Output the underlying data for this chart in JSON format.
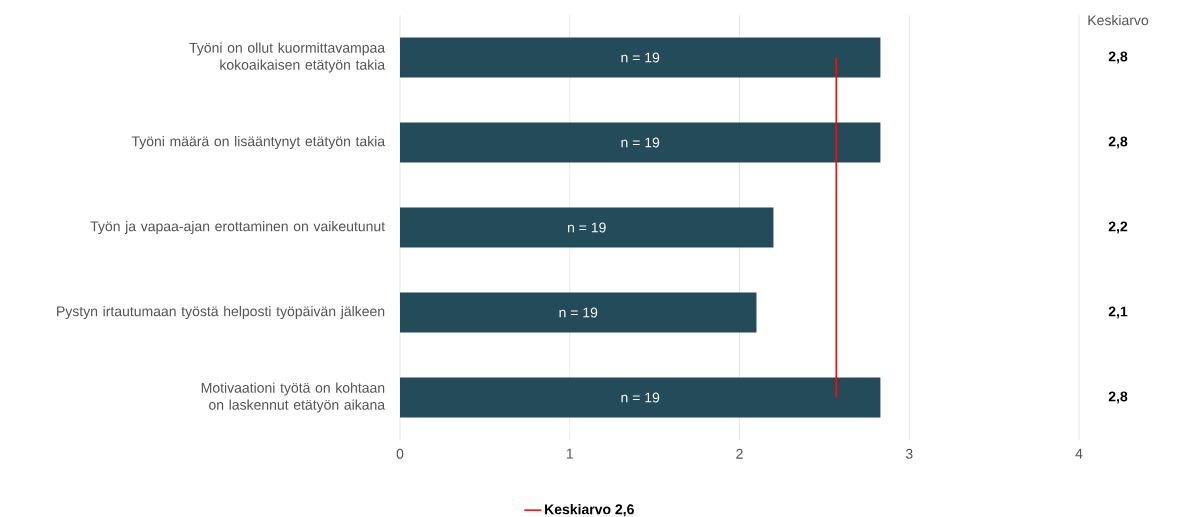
{
  "chart_data": {
    "type": "bar",
    "orientation": "horizontal",
    "categories": [
      "Työni on ollut kuormittavampaa kokoaikaisen etätyön takia",
      "Työni määrä on lisääntynyt etätyön takia",
      "Työn ja vapaa-ajan erottaminen on vaikeutunut",
      "Pystyn irtautumaan työstä helposti työpäivän jälkeen",
      "Motivaationi työtä on kohtaan on laskennut etätyön aikana"
    ],
    "values": [
      2.83,
      2.83,
      2.2,
      2.1,
      2.83
    ],
    "value_labels": [
      "2,8",
      "2,8",
      "2,2",
      "2,1",
      "2,8"
    ],
    "color": "#234b5a",
    "xlim": [
      0,
      4
    ],
    "xticks": [
      0,
      1,
      2,
      3,
      4
    ],
    "grid": "x",
    "ref_lines": [
      {
        "axis": "x",
        "value": 2.57,
        "label": "Keskiarvo 2,6",
        "color": "#ee1111"
      }
    ],
    "legend": "bottom",
    "annotations": [
      "Keskiarvo",
      "n = 19",
      "n = 19",
      "n = 19",
      "n = 19",
      "n = 19"
    ]
  }
}
